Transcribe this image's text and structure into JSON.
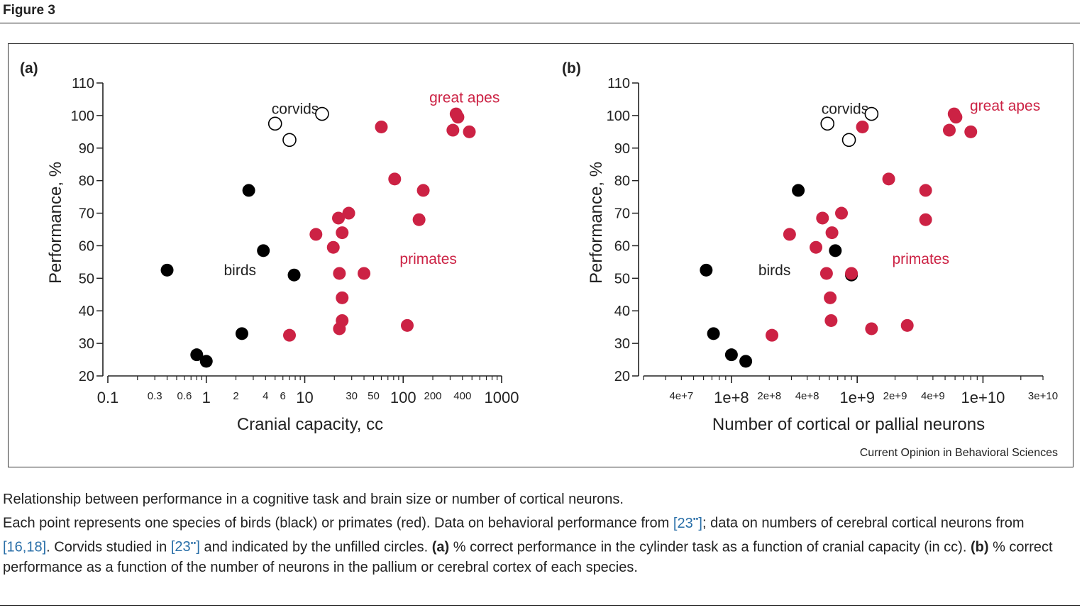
{
  "figure_heading": "Figure 3",
  "source_credit": "Current Opinion in Behavioral Sciences",
  "caption": {
    "title": "Relationship between performance in a cognitive task and brain size or number of cortical neurons.",
    "text_1": "Each point represents one species of birds (black) or primates (red). Data on behavioral performance from ",
    "ref_1": "[23",
    "text_2": "; data on numbers of cerebral cortical neurons from ",
    "ref_2": "[16,18]",
    "text_3": ". Corvids studied in ",
    "ref_3": "[23",
    "text_4": " and indicated by the unfilled circles. ",
    "bold_a": "(a)",
    "text_5": " % correct performance in the cylinder task as a function of cranial capacity (in cc). ",
    "bold_b": "(b)",
    "text_6": " % correct performance as a function of the number of neurons in the pallium or cerebral cortex of each species.",
    "ref_close": "]",
    "ref_sup": "••"
  },
  "colors": {
    "primates": "#cc2244",
    "birds": "#000000",
    "corvids_fill": "#ffffff",
    "axis": "#222222"
  },
  "chart_data": [
    {
      "type": "scatter",
      "panel_label": "(a)",
      "xlabel": "Cranial capacity, cc",
      "ylabel": "Performance, %",
      "x_scale": "log",
      "xlim": [
        0.1,
        1000
      ],
      "ylim": [
        20,
        110
      ],
      "x_ticks": [
        {
          "value": 0.1,
          "label": "0.1",
          "major": true
        },
        {
          "value": 0.3,
          "label": "0.3",
          "major": false
        },
        {
          "value": 0.6,
          "label": "0.6",
          "major": false
        },
        {
          "value": 1,
          "label": "1",
          "major": true
        },
        {
          "value": 2,
          "label": "2",
          "major": false
        },
        {
          "value": 4,
          "label": "4",
          "major": false
        },
        {
          "value": 6,
          "label": "6",
          "major": false
        },
        {
          "value": 10,
          "label": "10",
          "major": true
        },
        {
          "value": 30,
          "label": "30",
          "major": false
        },
        {
          "value": 50,
          "label": "50",
          "major": false
        },
        {
          "value": 100,
          "label": "100",
          "major": true
        },
        {
          "value": 200,
          "label": "200",
          "major": false
        },
        {
          "value": 400,
          "label": "400",
          "major": false
        },
        {
          "value": 1000,
          "label": "1000",
          "major": true
        }
      ],
      "y_ticks": [
        20,
        30,
        40,
        50,
        60,
        70,
        80,
        90,
        100,
        110
      ],
      "annotations": [
        {
          "text": "birds",
          "x": 2.2,
          "y": 52.5,
          "color": "#222222"
        },
        {
          "text": "corvids",
          "x": 8,
          "y": 102,
          "color": "#222222"
        },
        {
          "text": "great apes",
          "x": 420,
          "y": 105.5,
          "color": "#cc2244"
        },
        {
          "text": "primates",
          "x": 180,
          "y": 56,
          "color": "#cc2244"
        }
      ],
      "series": [
        {
          "group": "birds",
          "points": [
            [
              0.4,
              52.5
            ],
            [
              2.7,
              77
            ],
            [
              3.8,
              58.5
            ],
            [
              7.8,
              51
            ],
            [
              2.3,
              33
            ],
            [
              0.8,
              26.5
            ],
            [
              1.0,
              24.5
            ]
          ]
        },
        {
          "group": "corvids",
          "points": [
            [
              5.0,
              97.5
            ],
            [
              7.0,
              92.5
            ],
            [
              15.0,
              100.5
            ]
          ]
        },
        {
          "group": "primates",
          "points": [
            [
              60,
              96.5
            ],
            [
              345,
              100.5
            ],
            [
              360,
              99.5
            ],
            [
              320,
              95.5
            ],
            [
              470,
              95
            ],
            [
              82,
              80.5
            ],
            [
              160,
              77
            ],
            [
              145,
              68
            ],
            [
              28,
              70
            ],
            [
              22,
              68.5
            ],
            [
              24,
              64
            ],
            [
              13,
              63.5
            ],
            [
              19.5,
              59.5
            ],
            [
              22.5,
              51.5
            ],
            [
              40,
              51.5
            ],
            [
              24,
              44
            ],
            [
              24,
              37
            ],
            [
              22.5,
              34.5
            ],
            [
              110,
              35.5
            ],
            [
              7,
              32.5
            ]
          ]
        }
      ]
    },
    {
      "type": "scatter",
      "panel_label": "(b)",
      "xlabel": "Number of cortical or pallial neurons",
      "ylabel": "Performance, %",
      "x_scale": "log",
      "xlim": [
        20000000,
        30000000000
      ],
      "ylim": [
        20,
        110
      ],
      "x_ticks": [
        {
          "value": 40000000,
          "label": "4e+7",
          "major": false
        },
        {
          "value": 100000000,
          "label": "1e+8",
          "major": true
        },
        {
          "value": 200000000,
          "label": "2e+8",
          "major": false
        },
        {
          "value": 400000000,
          "label": "4e+8",
          "major": false
        },
        {
          "value": 1000000000,
          "label": "1e+9",
          "major": true
        },
        {
          "value": 2000000000,
          "label": "2e+9",
          "major": false
        },
        {
          "value": 4000000000,
          "label": "4e+9",
          "major": false
        },
        {
          "value": 10000000000,
          "label": "1e+10",
          "major": true
        },
        {
          "value": 30000000000,
          "label": "3e+10",
          "major": false
        }
      ],
      "y_ticks": [
        20,
        30,
        40,
        50,
        60,
        70,
        80,
        90,
        100,
        110
      ],
      "annotations": [
        {
          "text": "birds",
          "x": 220000000,
          "y": 52.5,
          "color": "#222222"
        },
        {
          "text": "corvids",
          "x": 800000000,
          "y": 102,
          "color": "#222222"
        },
        {
          "text": "great apes",
          "x": 15000000000,
          "y": 103,
          "color": "#cc2244"
        },
        {
          "text": "primates",
          "x": 3200000000,
          "y": 56,
          "color": "#cc2244"
        }
      ],
      "series": [
        {
          "group": "birds",
          "points": [
            [
              63000000,
              52.5
            ],
            [
              340000000,
              77
            ],
            [
              670000000,
              58.5
            ],
            [
              900000000,
              51
            ],
            [
              72000000,
              33
            ],
            [
              100000000,
              26.5
            ],
            [
              130000000,
              24.5
            ]
          ]
        },
        {
          "group": "corvids",
          "points": [
            [
              580000000,
              97.5
            ],
            [
              860000000,
              92.5
            ],
            [
              1300000000,
              100.5
            ]
          ]
        },
        {
          "group": "primates",
          "points": [
            [
              1100000000,
              96.5
            ],
            [
              5900000000,
              100.5
            ],
            [
              6100000000,
              99.5
            ],
            [
              5400000000,
              95.5
            ],
            [
              8000000000,
              95
            ],
            [
              1780000000,
              80.5
            ],
            [
              3500000000,
              77
            ],
            [
              3500000000,
              68
            ],
            [
              750000000,
              70
            ],
            [
              530000000,
              68.5
            ],
            [
              630000000,
              64
            ],
            [
              290000000,
              63.5
            ],
            [
              470000000,
              59.5
            ],
            [
              570000000,
              51.5
            ],
            [
              900000000,
              51.5
            ],
            [
              610000000,
              44
            ],
            [
              620000000,
              37
            ],
            [
              1300000000,
              34.5
            ],
            [
              2500000000,
              35.5
            ],
            [
              210000000,
              32.5
            ]
          ]
        }
      ]
    }
  ]
}
